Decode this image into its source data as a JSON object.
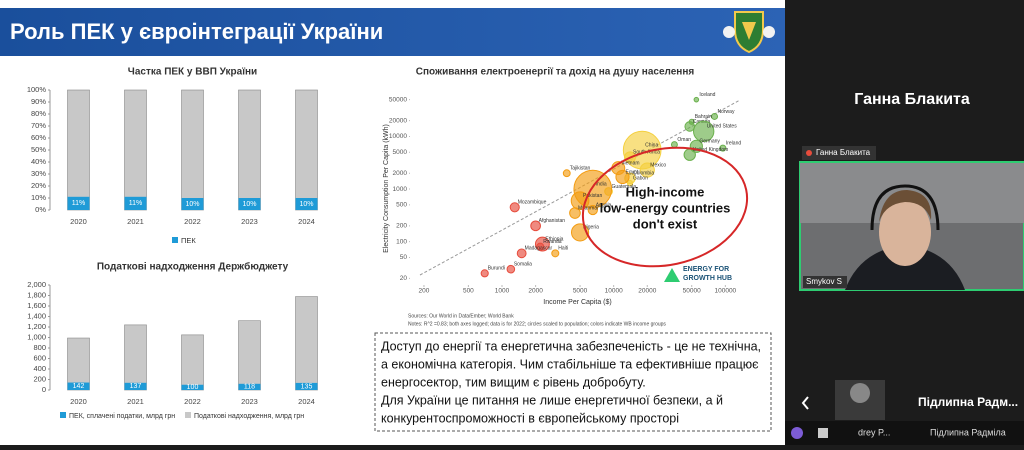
{
  "slide": {
    "title": "Роль ПЕК у євроінтеграції України"
  },
  "gdp_chart": {
    "type": "bar",
    "title": "Частка ПЕК у ВВП України",
    "categories": [
      "2020",
      "2021",
      "2022",
      "2023",
      "2024"
    ],
    "series": [
      {
        "name": "ПЕК",
        "color": "#1f9bd7",
        "values": [
          11,
          11,
          10,
          10,
          10
        ],
        "value_labels": [
          "11%",
          "11%",
          "10%",
          "10%",
          "10%"
        ]
      }
    ],
    "ylim": [
      0,
      100
    ],
    "yticks": [
      {
        "value": 0,
        "label": "0%"
      },
      {
        "value": 10,
        "label": "10%"
      },
      {
        "value": 20,
        "label": "20%"
      },
      {
        "value": 30,
        "label": "30%"
      },
      {
        "value": 40,
        "label": "40%"
      },
      {
        "value": 50,
        "label": "50%"
      },
      {
        "value": 60,
        "label": "60%"
      },
      {
        "value": 70,
        "label": "70%"
      },
      {
        "value": 80,
        "label": "80%"
      },
      {
        "value": 90,
        "label": "90%"
      },
      {
        "value": 100,
        "label": "100%"
      }
    ]
  },
  "tax_chart": {
    "type": "bar",
    "title": "Податкові надходження Держбюджету",
    "categories": [
      "2020",
      "2021",
      "2022",
      "2023",
      "2024"
    ],
    "series": [
      {
        "name": "ПЕК, сплачені податки, млрд грн",
        "color": "#1f9bd7",
        "values": [
          142,
          137,
          100,
          118,
          135
        ]
      },
      {
        "name": "Податкові надходження, млрд грн",
        "color": "#c8c8c8",
        "values": [
          990,
          1240,
          1050,
          1320,
          1780
        ]
      }
    ],
    "ylim": [
      0,
      2000
    ],
    "yticks": [
      0,
      200,
      400,
      600,
      800,
      {
        "value": 1000,
        "label": "1,000"
      },
      {
        "value": 1200,
        "label": "1,200"
      },
      {
        "value": 1400,
        "label": "1,400"
      },
      {
        "value": 1600,
        "label": "1,600"
      },
      {
        "value": 1800,
        "label": "1,800"
      },
      {
        "value": 2000,
        "label": "2,000"
      }
    ]
  },
  "energy_chart": {
    "type": "scatter",
    "title": "Споживання електроенергії та дохід на душу населення",
    "x_label": "Income Per Capita ($)",
    "y_label": "Electricity Consumption Per Capita (kWh)",
    "log_scale": true,
    "xlim": [
      150,
      150000
    ],
    "ylim": [
      15,
      70000
    ],
    "xticks": [
      200,
      500,
      1000,
      2000,
      5000,
      10000,
      20000,
      50000,
      100000
    ],
    "yticks": [
      20,
      50,
      100,
      200,
      500,
      1000,
      2000,
      5000,
      10000,
      20000,
      50000
    ],
    "points": [
      {
        "label": "Iceland",
        "x": 55000,
        "y": 50000,
        "size": 0.4,
        "color": "#6ab04c"
      },
      {
        "label": "Norway",
        "x": 80000,
        "y": 24000,
        "size": 5,
        "color": "#6ab04c"
      },
      {
        "label": "Bahrain",
        "x": 50000,
        "y": 19000,
        "size": 1.5,
        "color": "#6ab04c"
      },
      {
        "label": "Canada",
        "x": 48000,
        "y": 15500,
        "size": 38,
        "color": "#6ab04c"
      },
      {
        "label": "United States",
        "x": 64000,
        "y": 12500,
        "size": 330,
        "color": "#6ab04c"
      },
      {
        "label": "Oman",
        "x": 35000,
        "y": 7000,
        "size": 4.5,
        "color": "#6ab04c"
      },
      {
        "label": "Germany",
        "x": 55000,
        "y": 6500,
        "size": 83,
        "color": "#6ab04c"
      },
      {
        "label": "Ireland",
        "x": 95000,
        "y": 6000,
        "size": 5,
        "color": "#6ab04c"
      },
      {
        "label": "United Kingdom",
        "x": 48000,
        "y": 4500,
        "size": 67,
        "color": "#6ab04c"
      },
      {
        "label": "China",
        "x": 18000,
        "y": 5500,
        "size": 1400,
        "color": "#f4d03f"
      },
      {
        "label": "South Africa",
        "x": 14000,
        "y": 4000,
        "size": 60,
        "color": "#f4d03f"
      },
      {
        "label": "Mexico",
        "x": 20000,
        "y": 2300,
        "size": 128,
        "color": "#f4d03f"
      },
      {
        "label": "Colombia",
        "x": 14000,
        "y": 1600,
        "size": 51,
        "color": "#f4d03f"
      },
      {
        "label": "Gabon",
        "x": 14000,
        "y": 1300,
        "size": 2,
        "color": "#f4d03f"
      },
      {
        "label": "Guatemala",
        "x": 9000,
        "y": 900,
        "size": 17,
        "color": "#f4d03f"
      },
      {
        "label": "Vietnam",
        "x": 11000,
        "y": 2500,
        "size": 98,
        "color": "#f39c12"
      },
      {
        "label": "Egypt",
        "x": 12000,
        "y": 1700,
        "size": 104,
        "color": "#f39c12"
      },
      {
        "label": "India",
        "x": 6500,
        "y": 1000,
        "size": 1400,
        "color": "#f39c12"
      },
      {
        "label": "Tajikistan",
        "x": 3800,
        "y": 2000,
        "size": 10,
        "color": "#f39c12"
      },
      {
        "label": "Pakistan",
        "x": 5000,
        "y": 600,
        "size": 230,
        "color": "#f39c12"
      },
      {
        "label": "Angola",
        "x": 6500,
        "y": 400,
        "size": 35,
        "color": "#f39c12"
      },
      {
        "label": "Myanmar",
        "x": 4500,
        "y": 350,
        "size": 54,
        "color": "#f39c12"
      },
      {
        "label": "Nigeria",
        "x": 5000,
        "y": 150,
        "size": 213,
        "color": "#f39c12"
      },
      {
        "label": "Haiti",
        "x": 3000,
        "y": 60,
        "size": 11,
        "color": "#f39c12"
      },
      {
        "label": "Mozambique",
        "x": 1300,
        "y": 450,
        "size": 32,
        "color": "#e74c3c"
      },
      {
        "label": "Afghanistan",
        "x": 2000,
        "y": 200,
        "size": 40,
        "color": "#e74c3c"
      },
      {
        "label": "Ethiopia",
        "x": 2300,
        "y": 90,
        "size": 120,
        "color": "#e74c3c"
      },
      {
        "label": "Rwanda",
        "x": 2200,
        "y": 80,
        "size": 13,
        "color": "#e74c3c"
      },
      {
        "label": "Madagascar",
        "x": 1500,
        "y": 60,
        "size": 28,
        "color": "#e74c3c"
      },
      {
        "label": "Somalia",
        "x": 1200,
        "y": 30,
        "size": 16,
        "color": "#e74c3c"
      },
      {
        "label": "Burundi",
        "x": 700,
        "y": 25,
        "size": 12,
        "color": "#e74c3c"
      }
    ],
    "annotation": [
      "High-income",
      "low-energy countries",
      "don't exist"
    ],
    "logo": [
      "ENERGY FOR",
      "GROWTH HUB"
    ],
    "sources": "Sources: Our World in Data/Ember; World Bank",
    "notes": "Notes: R^2 =0.83; both axes logged; data is for 2022; circles scaled to population; colors indicate WB income groups"
  },
  "text_box": {
    "lines": [
      "Доступ до енергії та енергетична забезпеченість - це не технічна,",
      "а економічна категорія. Чим стабільніше та ефективніше працює",
      "енергосектор, тим вищим є рівень добробуту.",
      "Для України це питання не лише енергетичної безпеки, а й",
      "конкурентоспроможності в європейському просторі"
    ]
  },
  "call": {
    "speaker_header": "Ганна Блакита",
    "speaker_tag": "Ганна Блакита",
    "video_tag": "Smykov S",
    "participant": "Підлипна Радм...",
    "taskbar": [
      "drey P...",
      "Підлипна Радміла"
    ]
  }
}
